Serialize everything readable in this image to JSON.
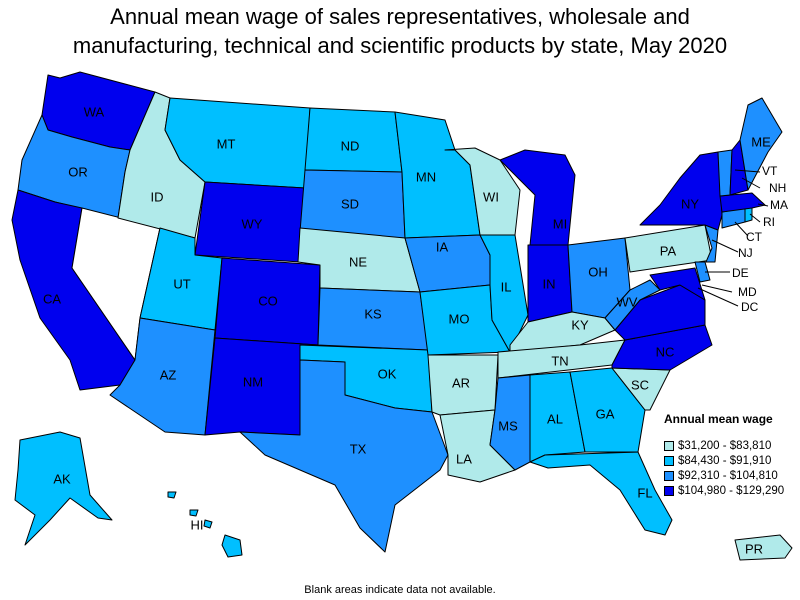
{
  "title_line1": "Annual mean wage of sales representatives, wholesale and",
  "title_line2": "manufacturing, technical and scientific products by state, May 2020",
  "footnote": "Blank areas indicate data not available.",
  "colors": {
    "c1": "#b0eaea",
    "c2": "#00bfff",
    "c3": "#1e90ff",
    "c4": "#0000ee",
    "none": "#ffffff"
  },
  "legend": {
    "title": "Annual mean wage",
    "items": [
      {
        "label": "$31,200 - $83,810",
        "cls": "c1"
      },
      {
        "label": "$84,430 - $91,910",
        "cls": "c2"
      },
      {
        "label": "$92,310 - $104,810",
        "cls": "c3"
      },
      {
        "label": "$104,980 - $129,290",
        "cls": "c4"
      }
    ]
  },
  "states": {
    "WA": "c4",
    "OR": "c3",
    "CA": "c4",
    "NV": "none",
    "ID": "c1",
    "MT": "c2",
    "WY": "c4",
    "UT": "c2",
    "AZ": "c3",
    "CO": "c4",
    "NM": "c4",
    "ND": "c2",
    "SD": "c3",
    "NE": "c1",
    "KS": "c3",
    "OK": "c2",
    "TX": "c3",
    "MN": "c2",
    "IA": "c3",
    "MO": "c2",
    "AR": "c1",
    "LA": "c1",
    "WI": "c1",
    "IL": "c2",
    "MI": "c4",
    "IN": "c4",
    "OH": "c3",
    "KY": "c1",
    "TN": "c1",
    "MS": "c3",
    "AL": "c2",
    "GA": "c2",
    "FL": "c2",
    "SC": "c1",
    "NC": "c4",
    "VA": "c4",
    "WV": "c3",
    "PA": "c1",
    "NY": "c4",
    "VT": "c3",
    "NH": "c4",
    "ME": "c3",
    "MA": "c4",
    "RI": "c2",
    "CT": "c3",
    "NJ": "c3",
    "DE": "c3",
    "MD": "c4",
    "DC": "c4",
    "AK": "c2",
    "HI": "c2",
    "PR": "c1"
  },
  "labels": {
    "WA": "WA",
    "OR": "OR",
    "CA": "CA",
    "ID": "ID",
    "MT": "MT",
    "WY": "WY",
    "UT": "UT",
    "AZ": "AZ",
    "CO": "CO",
    "NM": "NM",
    "ND": "ND",
    "SD": "SD",
    "NE": "NE",
    "KS": "KS",
    "OK": "OK",
    "TX": "TX",
    "MN": "MN",
    "IA": "IA",
    "MO": "MO",
    "AR": "AR",
    "LA": "LA",
    "WI": "WI",
    "IL": "IL",
    "MI": "MI",
    "IN": "IN",
    "OH": "OH",
    "KY": "KY",
    "TN": "TN",
    "MS": "MS",
    "AL": "AL",
    "GA": "GA",
    "FL": "FL",
    "SC": "SC",
    "NC": "NC",
    "WV": "WV",
    "PA": "PA",
    "NY": "NY",
    "ME": "ME",
    "VT": "VT",
    "NH": "NH",
    "MA": "MA",
    "RI": "RI",
    "CT": "CT",
    "NJ": "NJ",
    "DE": "DE",
    "MD": "MD",
    "DC": "DC",
    "AK": "AK",
    "HI": "HI",
    "PR": "PR"
  }
}
